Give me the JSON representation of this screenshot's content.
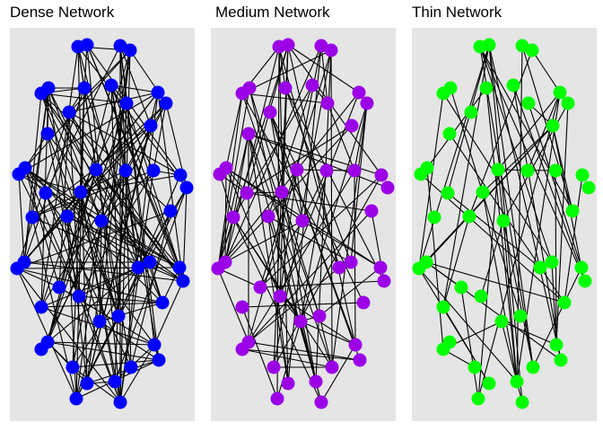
{
  "panels": [
    {
      "title": "Dense Network",
      "node_color": "#0000ff",
      "edges": 180
    },
    {
      "title": "Medium Network",
      "node_color": "#9b00e6",
      "edges": 110
    },
    {
      "title": "Thin Network",
      "node_color": "#00ff00",
      "edges": 62
    }
  ]
}
